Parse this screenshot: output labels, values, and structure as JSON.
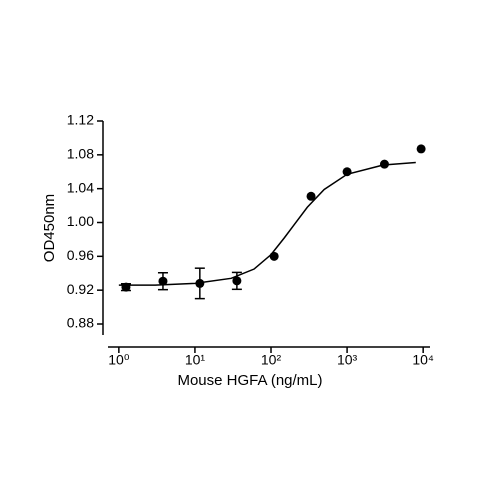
{
  "chart_data": {
    "type": "scatter",
    "x_label": "Mouse HGFA (ng/mL)",
    "y_label": "OD450nm",
    "log_x": true,
    "color": "#000000",
    "series": [
      {
        "x": [
          1.24,
          3.8,
          11.6,
          35.6,
          110,
          336,
          1000,
          3100,
          9400
        ],
        "values": [
          0.9236,
          0.9306,
          0.928,
          0.931,
          0.96,
          1.031,
          1.06,
          1.069,
          1.087
        ],
        "errors": [
          0.004,
          0.01,
          0.018,
          0.01,
          null,
          null,
          null,
          null,
          null
        ]
      }
    ],
    "curve": {
      "x": [
        1,
        3,
        10,
        30,
        60,
        100,
        150,
        200,
        300,
        500,
        1000,
        3000,
        8000
      ],
      "values": [
        0.926,
        0.926,
        0.928,
        0.934,
        0.945,
        0.962,
        0.982,
        0.997,
        1.018,
        1.039,
        1.057,
        1.068,
        1.071
      ]
    },
    "xlim": [
      0.72,
      12300
    ],
    "ylim": [
      0.867,
      1.12
    ],
    "xticks": [
      {
        "value": 1,
        "label": "10⁰"
      },
      {
        "value": 10,
        "label": "10¹"
      },
      {
        "value": 100,
        "label": "10²"
      },
      {
        "value": 1000,
        "label": "10³"
      },
      {
        "value": 10000,
        "label": "10⁴"
      }
    ],
    "yticks": [
      {
        "value": 0.88,
        "label": "0.88"
      },
      {
        "value": 0.92,
        "label": "0.92"
      },
      {
        "value": 0.96,
        "label": "0.96"
      },
      {
        "value": 1.0,
        "label": "1.00"
      },
      {
        "value": 1.04,
        "label": "1.04"
      },
      {
        "value": 1.08,
        "label": "1.08"
      },
      {
        "value": 1.12,
        "label": "1.12"
      }
    ]
  }
}
